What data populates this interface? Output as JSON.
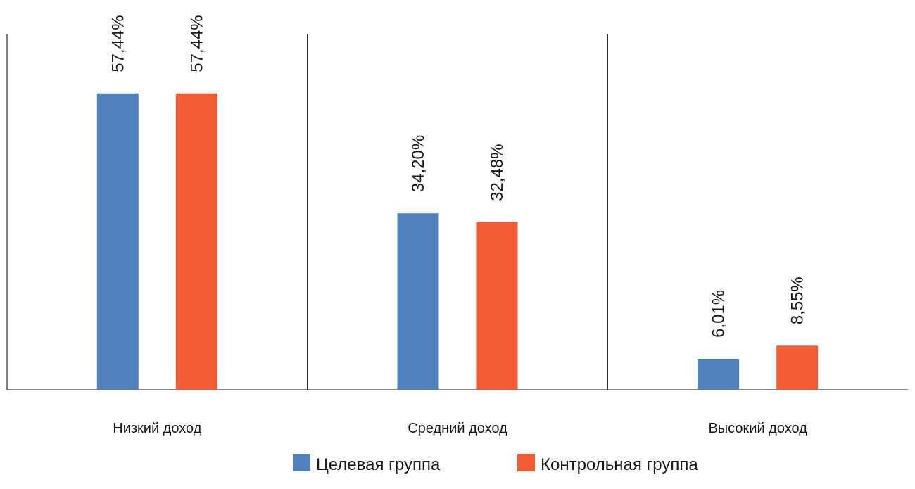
{
  "chart_data": {
    "type": "bar",
    "categories": [
      "Низкий доход",
      "Средний доход",
      "Высокий доход"
    ],
    "series": [
      {
        "name": "Целевая группа",
        "color": "#4F81BD",
        "values": [
          57.44,
          34.2,
          6.01
        ],
        "labels": [
          "57,44%",
          "34,20%",
          "6,01%"
        ]
      },
      {
        "name": "Контрольная группа",
        "color": "#F15B36",
        "values": [
          57.44,
          32.48,
          8.55
        ],
        "labels": [
          "57,44%",
          "32,48%",
          "8,55%"
        ]
      }
    ],
    "ylim": [
      0,
      69
    ],
    "grid": false,
    "legend_position": "bottom"
  }
}
